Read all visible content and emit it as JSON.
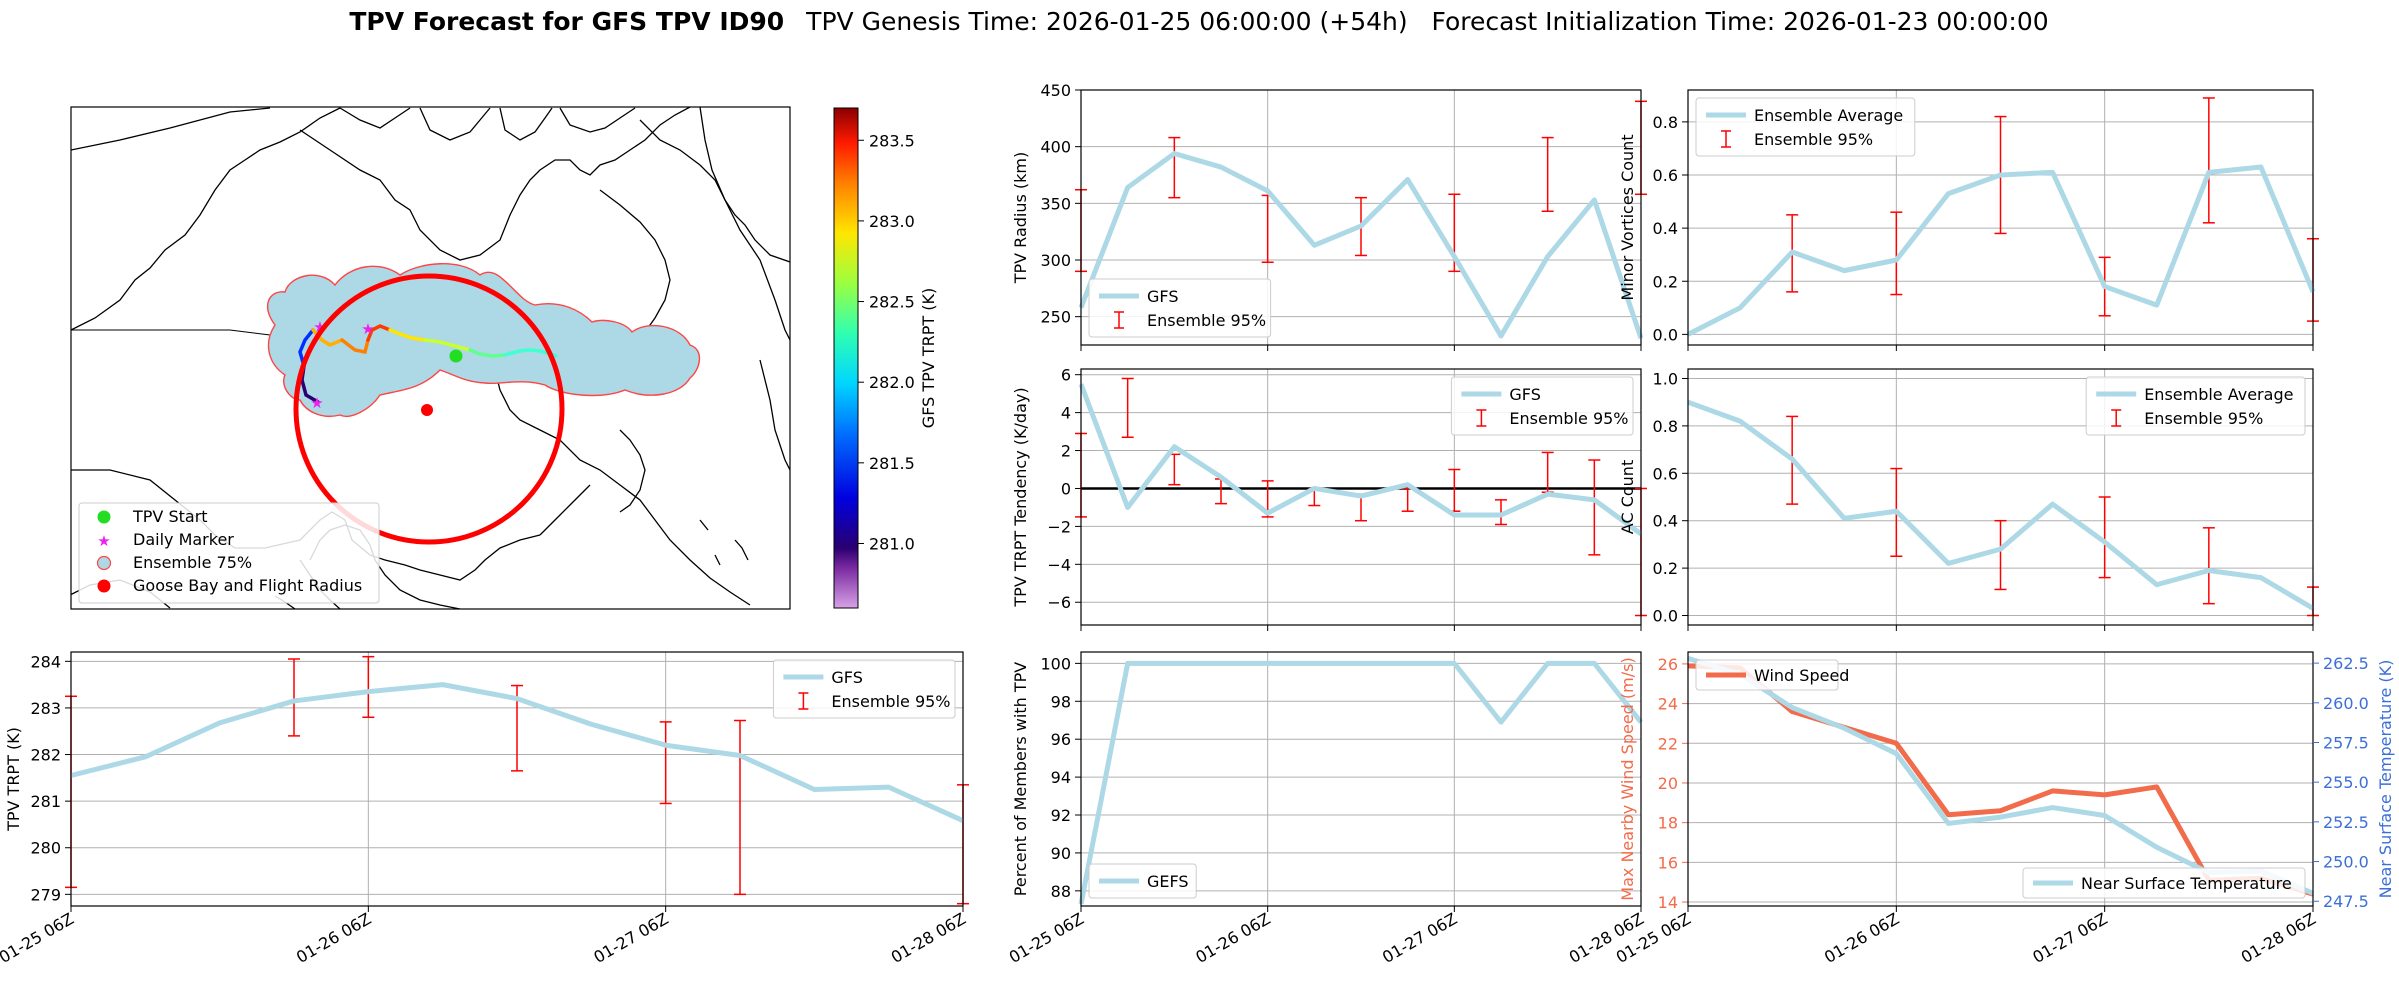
{
  "figure": {
    "title_bold": "TPV Forecast for GFS TPV ID90",
    "title_rest": "TPV Genesis Time: 2026-01-25 06:00:00 (+54h)   Forecast Initialization Time: 2026-01-23 00:00:00"
  },
  "colors": {
    "gfs": "#add8e6",
    "ensemble": "#ff0000",
    "wind": "#f26b4a",
    "temp_axis": "#3b6fd8",
    "zero": "#000000",
    "grid": "#b0b0b0"
  },
  "chart_data": [
    {
      "id": "map",
      "type": "map",
      "colorbar": {
        "label": "GFS TPV TRPT (K)",
        "min": 280.6,
        "max": 283.7,
        "ticks": [
          281.0,
          281.5,
          282.0,
          282.5,
          283.0,
          283.5
        ],
        "tick_labels": [
          "281.0",
          "281.5",
          "282.0",
          "282.5",
          "283.0",
          "283.5"
        ]
      },
      "legend": [
        {
          "label": "TPV Start",
          "marker": "circle",
          "color": "#22dd22"
        },
        {
          "label": "Daily Marker",
          "marker": "star",
          "color": "#ee22ee"
        },
        {
          "label": "Ensemble 75%",
          "marker": "circle",
          "color": "#add8e6"
        },
        {
          "label": "Goose Bay and Flight Radius",
          "marker": "circle",
          "color": "#ff0000"
        }
      ]
    },
    {
      "id": "radius",
      "type": "line",
      "ylabel": "TPV Radius (km)",
      "ylim": [
        225,
        450
      ],
      "yticks": [
        250,
        300,
        350,
        400,
        450
      ],
      "xlim": [
        0,
        12
      ],
      "xticks": [
        0,
        4,
        8,
        12
      ],
      "series": [
        {
          "name": "GFS",
          "x": [
            0,
            1,
            2,
            3,
            4,
            5,
            6,
            7,
            8,
            9,
            10,
            11,
            12
          ],
          "values": [
            258,
            364,
            394,
            382,
            361,
            313,
            330,
            371,
            303,
            233,
            303,
            353,
            231
          ]
        }
      ],
      "errorbars": {
        "name": "Ensemble 95%",
        "x": [
          0,
          2,
          4,
          6,
          8,
          10,
          12
        ],
        "low": [
          290,
          355,
          298,
          304,
          290,
          343,
          358
        ],
        "high": [
          362,
          408,
          357,
          355,
          358,
          408,
          440
        ]
      },
      "legend_position": "lower-left",
      "legend": [
        "GFS",
        "Ensemble 95%"
      ]
    },
    {
      "id": "minor",
      "type": "line",
      "ylabel": "Minor Vortices Count",
      "ylim": [
        -0.04,
        0.92
      ],
      "yticks": [
        0.0,
        0.2,
        0.4,
        0.6,
        0.8
      ],
      "ytick_labels": [
        "0.0",
        "0.2",
        "0.4",
        "0.6",
        "0.8"
      ],
      "xlim": [
        0,
        12
      ],
      "xticks": [
        0,
        4,
        8,
        12
      ],
      "series": [
        {
          "name": "Ensemble Average",
          "x": [
            0,
            1,
            2,
            3,
            4,
            5,
            6,
            7,
            8,
            9,
            10,
            11,
            12
          ],
          "values": [
            0.0,
            0.1,
            0.31,
            0.24,
            0.28,
            0.53,
            0.6,
            0.61,
            0.18,
            0.11,
            0.61,
            0.63,
            0.16
          ]
        }
      ],
      "errorbars": {
        "name": "Ensemble 95%",
        "x": [
          2,
          4,
          6,
          8,
          10,
          12
        ],
        "low": [
          0.16,
          0.15,
          0.38,
          0.07,
          0.42,
          0.05
        ],
        "high": [
          0.45,
          0.46,
          0.82,
          0.29,
          0.89,
          0.36
        ]
      },
      "legend_position": "upper-left",
      "legend": [
        "Ensemble Average",
        "Ensemble 95%"
      ]
    },
    {
      "id": "tendency",
      "type": "line",
      "ylabel": "TPV TRPT Tendency (K/day)",
      "ylim": [
        -7.2,
        6.3
      ],
      "yticks": [
        -6,
        -4,
        -2,
        0,
        2,
        4,
        6
      ],
      "ytick_labels": [
        "−6",
        "−4",
        "−2",
        "0",
        "2",
        "4",
        "6"
      ],
      "xlim": [
        0,
        12
      ],
      "xticks": [
        0,
        4,
        8,
        12
      ],
      "zero_line": true,
      "series": [
        {
          "name": "GFS",
          "x": [
            0,
            1,
            2,
            3,
            4,
            5,
            6,
            7,
            8,
            9,
            10,
            11,
            12
          ],
          "values": [
            5.5,
            -1.0,
            2.2,
            0.6,
            -1.3,
            0.0,
            -0.4,
            0.2,
            -1.4,
            -1.4,
            -0.3,
            -0.6,
            -2.4
          ]
        }
      ],
      "errorbars": {
        "name": "Ensemble 95%",
        "x": [
          1,
          3,
          5,
          7,
          9,
          11,
          12
        ],
        "low": [
          2.7,
          -0.8,
          -0.9,
          -1.2,
          -1.9,
          -3.5,
          -6.7
        ],
        "high": [
          5.8,
          0.5,
          0.0,
          0.0,
          -0.6,
          1.5,
          0.0
        ]
      },
      "errorbars2": {
        "x": [
          0,
          2,
          4,
          6,
          8,
          10
        ],
        "low": [
          -1.5,
          0.2,
          -1.5,
          -1.7,
          -1.2,
          -0.2
        ],
        "high": [
          2.9,
          1.8,
          0.4,
          -0.3,
          1.0,
          1.9
        ]
      },
      "legend_position": "upper-right",
      "legend": [
        "GFS",
        "Ensemble 95%"
      ]
    },
    {
      "id": "ac",
      "type": "line",
      "ylabel": "AC Count",
      "ylim": [
        -0.04,
        1.04
      ],
      "yticks": [
        0.0,
        0.2,
        0.4,
        0.6,
        0.8,
        1.0
      ],
      "ytick_labels": [
        "0.0",
        "0.2",
        "0.4",
        "0.6",
        "0.8",
        "1.0"
      ],
      "xlim": [
        0,
        12
      ],
      "xticks": [
        0,
        4,
        8,
        12
      ],
      "series": [
        {
          "name": "Ensemble Average",
          "x": [
            0,
            1,
            2,
            3,
            4,
            5,
            6,
            7,
            8,
            9,
            10,
            11,
            12
          ],
          "values": [
            0.9,
            0.82,
            0.66,
            0.41,
            0.44,
            0.22,
            0.28,
            0.47,
            0.31,
            0.13,
            0.19,
            0.16,
            0.03
          ]
        }
      ],
      "errorbars": {
        "name": "Ensemble 95%",
        "x": [
          2,
          4,
          6,
          8,
          10,
          12
        ],
        "low": [
          0.47,
          0.25,
          0.11,
          0.16,
          0.05,
          0.0
        ],
        "high": [
          0.84,
          0.62,
          0.4,
          0.5,
          0.37,
          0.12
        ]
      },
      "legend_position": "upper-right",
      "legend": [
        "Ensemble Average",
        "Ensemble 95%"
      ]
    },
    {
      "id": "trpt",
      "type": "line",
      "ylabel": "TPV TRPT (K)",
      "ylim": [
        278.75,
        284.2
      ],
      "yticks": [
        279,
        280,
        281,
        282,
        283,
        284
      ],
      "xlim": [
        0,
        12
      ],
      "xticks": [
        0,
        4,
        8,
        12
      ],
      "xticklabels": [
        "01-25 06Z",
        "01-26 06Z",
        "01-27 06Z",
        "01-28 06Z"
      ],
      "series": [
        {
          "name": "GFS",
          "x": [
            0,
            1,
            2,
            3,
            4,
            5,
            6,
            7,
            8,
            9,
            10,
            11,
            12
          ],
          "values": [
            281.55,
            281.95,
            282.68,
            283.15,
            283.35,
            283.5,
            283.2,
            282.65,
            282.2,
            281.98,
            281.25,
            281.3,
            280.58
          ]
        }
      ],
      "errorbars": {
        "name": "Ensemble 95%",
        "x": [
          0,
          3,
          6,
          9,
          12
        ],
        "low": [
          279.15,
          282.4,
          281.65,
          279.0,
          278.8
        ],
        "high": [
          283.25,
          284.05,
          283.48,
          282.73,
          281.35
        ]
      },
      "errorbars2": {
        "x": [
          4,
          8
        ],
        "low": [
          282.8,
          280.95
        ],
        "high": [
          284.1,
          282.7
        ]
      },
      "legend_position": "upper-right",
      "legend": [
        "GFS",
        "Ensemble 95%"
      ]
    },
    {
      "id": "percent",
      "type": "line",
      "ylabel": "Percent of Members with TPV",
      "ylim": [
        87.2,
        100.6
      ],
      "yticks": [
        88,
        90,
        92,
        94,
        96,
        98,
        100
      ],
      "xlim": [
        0,
        12
      ],
      "xticks": [
        0,
        4,
        8,
        12
      ],
      "xticklabels": [
        "01-25 06Z",
        "01-26 06Z",
        "01-27 06Z",
        "01-28 06Z"
      ],
      "series": [
        {
          "name": "GEFS",
          "x": [
            0,
            1,
            2,
            3,
            4,
            5,
            6,
            7,
            8,
            9,
            10,
            11,
            12
          ],
          "values": [
            87.3,
            100,
            100,
            100,
            100,
            100,
            100,
            100,
            100,
            96.9,
            100,
            100,
            96.9
          ]
        }
      ],
      "legend_position": "lower-left",
      "legend": [
        "GEFS"
      ]
    },
    {
      "id": "wind_temp",
      "type": "line",
      "ylabel": "Max Nearby Wind Speed (m/s)",
      "ylim": [
        13.8,
        26.6
      ],
      "yticks": [
        14,
        16,
        18,
        20,
        22,
        24,
        26
      ],
      "y2label": "Near Surface Temperature (K)",
      "y2lim": [
        247.2,
        263.2
      ],
      "y2ticks": [
        247.5,
        250.0,
        252.5,
        255.0,
        257.5,
        260.0,
        262.5
      ],
      "y2tick_labels": [
        "247.5",
        "250.0",
        "252.5",
        "255.0",
        "257.5",
        "260.0",
        "262.5"
      ],
      "xlim": [
        0,
        12
      ],
      "xticks": [
        0,
        4,
        8,
        12
      ],
      "xticklabels": [
        "01-25 06Z",
        "01-26 06Z",
        "01-27 06Z",
        "01-28 06Z"
      ],
      "series": [
        {
          "name": "Wind Speed",
          "axis": "left",
          "x": [
            0,
            1,
            2,
            3,
            4,
            5,
            6,
            7,
            8,
            9,
            10,
            11,
            12
          ],
          "values": [
            25.9,
            25.8,
            23.6,
            22.8,
            22.0,
            18.4,
            18.6,
            19.6,
            19.4,
            19.8,
            15.1,
            15.2,
            14.4
          ]
        },
        {
          "name": "Near Surface Temperature",
          "axis": "right",
          "x": [
            0,
            1,
            2,
            3,
            4,
            5,
            6,
            7,
            8,
            9,
            10,
            11,
            12
          ],
          "values": [
            262.8,
            261.8,
            259.7,
            258.4,
            256.8,
            252.4,
            252.8,
            253.4,
            252.9,
            250.9,
            249.3,
            249.4,
            248.0
          ]
        }
      ],
      "legend_left": [
        "Wind Speed"
      ],
      "legend_right": [
        "Near Surface Temperature"
      ]
    }
  ]
}
